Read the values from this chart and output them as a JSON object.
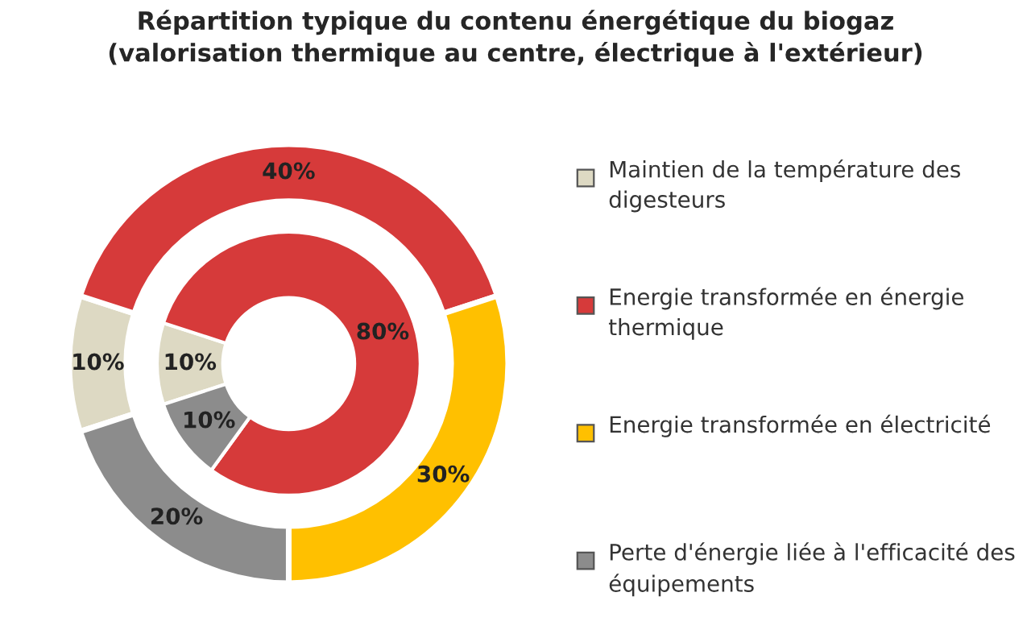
{
  "chart_data": {
    "type": "donut",
    "title": "Répartition typique du contenu énergétique du biogaz",
    "subtitle": "(valorisation thermique au centre, électrique à l'extérieur)",
    "categories": [
      "Maintien de la température des digesteurs",
      "Energie transformée en énergie thermique",
      "Energie transformée en électricité",
      "Perte d'énergie liée à l'efficacité des équipements"
    ],
    "colors": [
      "#ddd9c3",
      "#d63a3a",
      "#ffc000",
      "#8c8c8c"
    ],
    "series": [
      {
        "values": [
          10,
          80,
          null,
          10
        ],
        "value_labels": [
          "10%",
          "80%",
          null,
          "10%"
        ]
      },
      {
        "values": [
          10,
          40,
          30,
          20
        ],
        "value_labels": [
          "10%",
          "40%",
          "30%",
          "20%"
        ]
      }
    ],
    "legend": "right"
  }
}
